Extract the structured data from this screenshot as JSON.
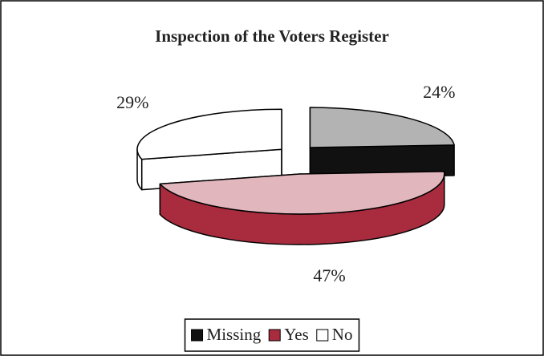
{
  "chart_data": {
    "type": "pie3d",
    "title": "Inspection of the Voters Register",
    "categories": [
      "Missing",
      "Yes",
      "No"
    ],
    "values": [
      24,
      47,
      29
    ],
    "value_labels": [
      "24%",
      "47%",
      "29%"
    ],
    "colors": [
      "#b3b3b3",
      "#e2b6bd",
      "#ffffff"
    ],
    "side_colors": [
      "#111111",
      "#a82c3e",
      "#ffffff"
    ],
    "legend": "bottom"
  }
}
